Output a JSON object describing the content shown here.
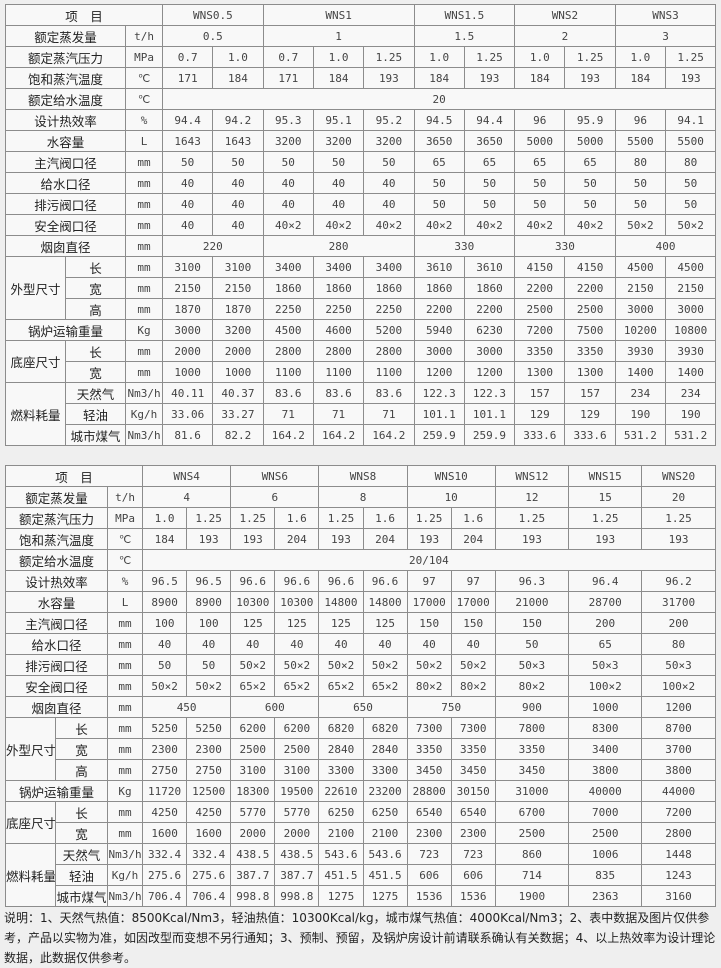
{
  "tables": [
    {
      "header": [
        "项　目",
        "WNS0.5",
        "WNS1",
        "WNS1.5",
        "WNS2",
        "WNS3"
      ],
      "rows": [
        {
          "label": "额定蒸发量",
          "unit": "t/h",
          "cells": [
            "0.5",
            "1",
            "1.5",
            "2",
            "3"
          ]
        },
        {
          "label": "额定蒸汽压力",
          "unit": "MPa",
          "cells": [
            "0.7",
            "1.0",
            "0.7",
            "1.0",
            "1.25",
            "1.0",
            "1.25",
            "1.0",
            "1.25",
            "1.0",
            "1.25"
          ]
        },
        {
          "label": "饱和蒸汽温度",
          "unit": "℃",
          "cells": [
            "171",
            "184",
            "171",
            "184",
            "193",
            "184",
            "193",
            "184",
            "193",
            "184",
            "193"
          ]
        },
        {
          "label": "额定给水温度",
          "unit": "℃",
          "cells": [
            "20"
          ]
        },
        {
          "label": "设计热效率",
          "unit": "%",
          "cells": [
            "94.4",
            "94.2",
            "95.3",
            "95.1",
            "95.2",
            "94.5",
            "94.4",
            "96",
            "95.9",
            "96",
            "94.1"
          ]
        },
        {
          "label": "水容量",
          "unit": "L",
          "cells": [
            "1643",
            "1643",
            "3200",
            "3200",
            "3200",
            "3650",
            "3650",
            "5000",
            "5000",
            "5500",
            "5500"
          ]
        },
        {
          "label": "主汽阀口径",
          "unit": "mm",
          "cells": [
            "50",
            "50",
            "50",
            "50",
            "50",
            "65",
            "65",
            "65",
            "65",
            "80",
            "80"
          ]
        },
        {
          "label": "给水口径",
          "unit": "mm",
          "cells": [
            "40",
            "40",
            "40",
            "40",
            "40",
            "50",
            "50",
            "50",
            "50",
            "50",
            "50"
          ]
        },
        {
          "label": "排污阀口径",
          "unit": "mm",
          "cells": [
            "40",
            "40",
            "40",
            "40",
            "40",
            "50",
            "50",
            "50",
            "50",
            "50",
            "50"
          ]
        },
        {
          "label": "安全阀口径",
          "unit": "mm",
          "cells": [
            "40",
            "40",
            "40×2",
            "40×2",
            "40×2",
            "40×2",
            "40×2",
            "40×2",
            "40×2",
            "50×2",
            "50×2"
          ]
        },
        {
          "label": "烟囱直径",
          "unit": "mm",
          "cells": [
            "220",
            "280",
            "330",
            "330",
            "400"
          ]
        },
        {
          "label": "外型尺寸",
          "sub": "长",
          "unit": "mm",
          "cells": [
            "3100",
            "3100",
            "3400",
            "3400",
            "3400",
            "3610",
            "3610",
            "4150",
            "4150",
            "4500",
            "4500"
          ]
        },
        {
          "sub": "宽",
          "unit": "mm",
          "cells": [
            "2150",
            "2150",
            "1860",
            "1860",
            "1860",
            "1860",
            "1860",
            "2200",
            "2200",
            "2150",
            "2150"
          ]
        },
        {
          "sub": "高",
          "unit": "mm",
          "cells": [
            "1870",
            "1870",
            "2250",
            "2250",
            "2250",
            "2200",
            "2200",
            "2500",
            "2500",
            "3000",
            "3000"
          ]
        },
        {
          "label": "锅炉运输重量",
          "unit": "Kg",
          "cells": [
            "3000",
            "3200",
            "4500",
            "4600",
            "5200",
            "5940",
            "6230",
            "7200",
            "7500",
            "10200",
            "10800"
          ]
        },
        {
          "label": "底座尺寸",
          "sub": "长",
          "unit": "mm",
          "cells": [
            "2000",
            "2000",
            "2800",
            "2800",
            "2800",
            "3000",
            "3000",
            "3350",
            "3350",
            "3930",
            "3930"
          ]
        },
        {
          "sub": "宽",
          "unit": "mm",
          "cells": [
            "1000",
            "1000",
            "1100",
            "1100",
            "1100",
            "1200",
            "1200",
            "1300",
            "1300",
            "1400",
            "1400"
          ]
        },
        {
          "label": "燃料耗量",
          "sub": "天然气",
          "unit": "Nm3/h",
          "cells": [
            "40.11",
            "40.37",
            "83.6",
            "83.6",
            "83.6",
            "122.3",
            "122.3",
            "157",
            "157",
            "234",
            "234"
          ]
        },
        {
          "sub": "轻油",
          "unit": "Kg/h",
          "cells": [
            "33.06",
            "33.27",
            "71",
            "71",
            "71",
            "101.1",
            "101.1",
            "129",
            "129",
            "190",
            "190"
          ]
        },
        {
          "sub": "城市煤气",
          "unit": "Nm3/h",
          "cells": [
            "81.6",
            "82.2",
            "164.2",
            "164.2",
            "164.2",
            "259.9",
            "259.9",
            "333.6",
            "333.6",
            "531.2",
            "531.2"
          ]
        }
      ]
    },
    {
      "header": [
        "项　目",
        "WNS4",
        "WNS6",
        "WNS8",
        "WNS10",
        "WNS12",
        "WNS15",
        "WNS20"
      ],
      "rows": [
        {
          "label": "额定蒸发量",
          "unit": "t/h",
          "cells": [
            "4",
            "6",
            "8",
            "10",
            "12",
            "15",
            "20"
          ]
        },
        {
          "label": "额定蒸汽压力",
          "unit": "MPa",
          "cells": [
            "1.0",
            "1.25",
            "1.25",
            "1.6",
            "1.25",
            "1.6",
            "1.25",
            "1.6",
            "1.25",
            "1.25",
            "1.25"
          ]
        },
        {
          "label": "饱和蒸汽温度",
          "unit": "℃",
          "cells": [
            "184",
            "193",
            "193",
            "204",
            "193",
            "204",
            "193",
            "204",
            "193",
            "193",
            "193"
          ]
        },
        {
          "label": "额定给水温度",
          "unit": "℃",
          "cells": [
            "20/104"
          ]
        },
        {
          "label": "设计热效率",
          "unit": "%",
          "cells": [
            "96.5",
            "96.5",
            "96.6",
            "96.6",
            "96.6",
            "96.6",
            "97",
            "97",
            "96.3",
            "96.4",
            "96.2"
          ]
        },
        {
          "label": "水容量",
          "unit": "L",
          "cells": [
            "8900",
            "8900",
            "10300",
            "10300",
            "14800",
            "14800",
            "17000",
            "17000",
            "21000",
            "28700",
            "31700"
          ]
        },
        {
          "label": "主汽阀口径",
          "unit": "mm",
          "cells": [
            "100",
            "100",
            "125",
            "125",
            "125",
            "125",
            "150",
            "150",
            "150",
            "200",
            "200"
          ]
        },
        {
          "label": "给水口径",
          "unit": "mm",
          "cells": [
            "40",
            "40",
            "40",
            "40",
            "40",
            "40",
            "40",
            "40",
            "50",
            "65",
            "80"
          ]
        },
        {
          "label": "排污阀口径",
          "unit": "mm",
          "cells": [
            "50",
            "50",
            "50×2",
            "50×2",
            "50×2",
            "50×2",
            "50×2",
            "50×2",
            "50×3",
            "50×3",
            "50×3"
          ]
        },
        {
          "label": "安全阀口径",
          "unit": "mm",
          "cells": [
            "50×2",
            "50×2",
            "65×2",
            "65×2",
            "65×2",
            "65×2",
            "80×2",
            "80×2",
            "80×2",
            "100×2",
            "100×2"
          ]
        },
        {
          "label": "烟囱直径",
          "unit": "mm",
          "cells": [
            "450",
            "600",
            "650",
            "750",
            "900",
            "1000",
            "1200"
          ]
        },
        {
          "label": "外型尺寸",
          "sub": "长",
          "unit": "mm",
          "cells": [
            "5250",
            "5250",
            "6200",
            "6200",
            "6820",
            "6820",
            "7300",
            "7300",
            "7800",
            "8300",
            "8700"
          ]
        },
        {
          "sub": "宽",
          "unit": "mm",
          "cells": [
            "2300",
            "2300",
            "2500",
            "2500",
            "2840",
            "2840",
            "3350",
            "3350",
            "3350",
            "3400",
            "3700"
          ]
        },
        {
          "sub": "高",
          "unit": "mm",
          "cells": [
            "2750",
            "2750",
            "3100",
            "3100",
            "3300",
            "3300",
            "3450",
            "3450",
            "3450",
            "3800",
            "3800"
          ]
        },
        {
          "label": "锅炉运输重量",
          "unit": "Kg",
          "cells": [
            "11720",
            "12500",
            "18300",
            "19500",
            "22610",
            "23200",
            "28800",
            "30150",
            "31000",
            "40000",
            "44000"
          ]
        },
        {
          "label": "底座尺寸",
          "sub": "长",
          "unit": "mm",
          "cells": [
            "4250",
            "4250",
            "5770",
            "5770",
            "6250",
            "6250",
            "6540",
            "6540",
            "6700",
            "7000",
            "7200"
          ]
        },
        {
          "sub": "宽",
          "unit": "mm",
          "cells": [
            "1600",
            "1600",
            "2000",
            "2000",
            "2100",
            "2100",
            "2300",
            "2300",
            "2500",
            "2500",
            "2800"
          ]
        },
        {
          "label": "燃料耗量",
          "sub": "天然气",
          "unit": "Nm3/h",
          "cells": [
            "332.4",
            "332.4",
            "438.5",
            "438.5",
            "543.6",
            "543.6",
            "723",
            "723",
            "860",
            "1006",
            "1448"
          ]
        },
        {
          "sub": "轻油",
          "unit": "Kg/h",
          "cells": [
            "275.6",
            "275.6",
            "387.7",
            "387.7",
            "451.5",
            "451.5",
            "606",
            "606",
            "714",
            "835",
            "1243"
          ]
        },
        {
          "sub": "城市煤气",
          "unit": "Nm3/h",
          "cells": [
            "706.4",
            "706.4",
            "998.8",
            "998.8",
            "1275",
            "1275",
            "1536",
            "1536",
            "1900",
            "2363",
            "3160"
          ]
        }
      ]
    }
  ],
  "note": "说明：1、天然气热值：8500Kcal/Nm3，轻油热值：10300Kcal/kg，城市煤气热值：4000Kcal/Nm3；2、表中数据及图片仅供参考，产品以实物为准，如因改型而变想不另行通知；3、预制、预留，及锅炉房设计前请联系确认有关数据；4、以上热效率为设计理论数据，此数据仅供参考。"
}
